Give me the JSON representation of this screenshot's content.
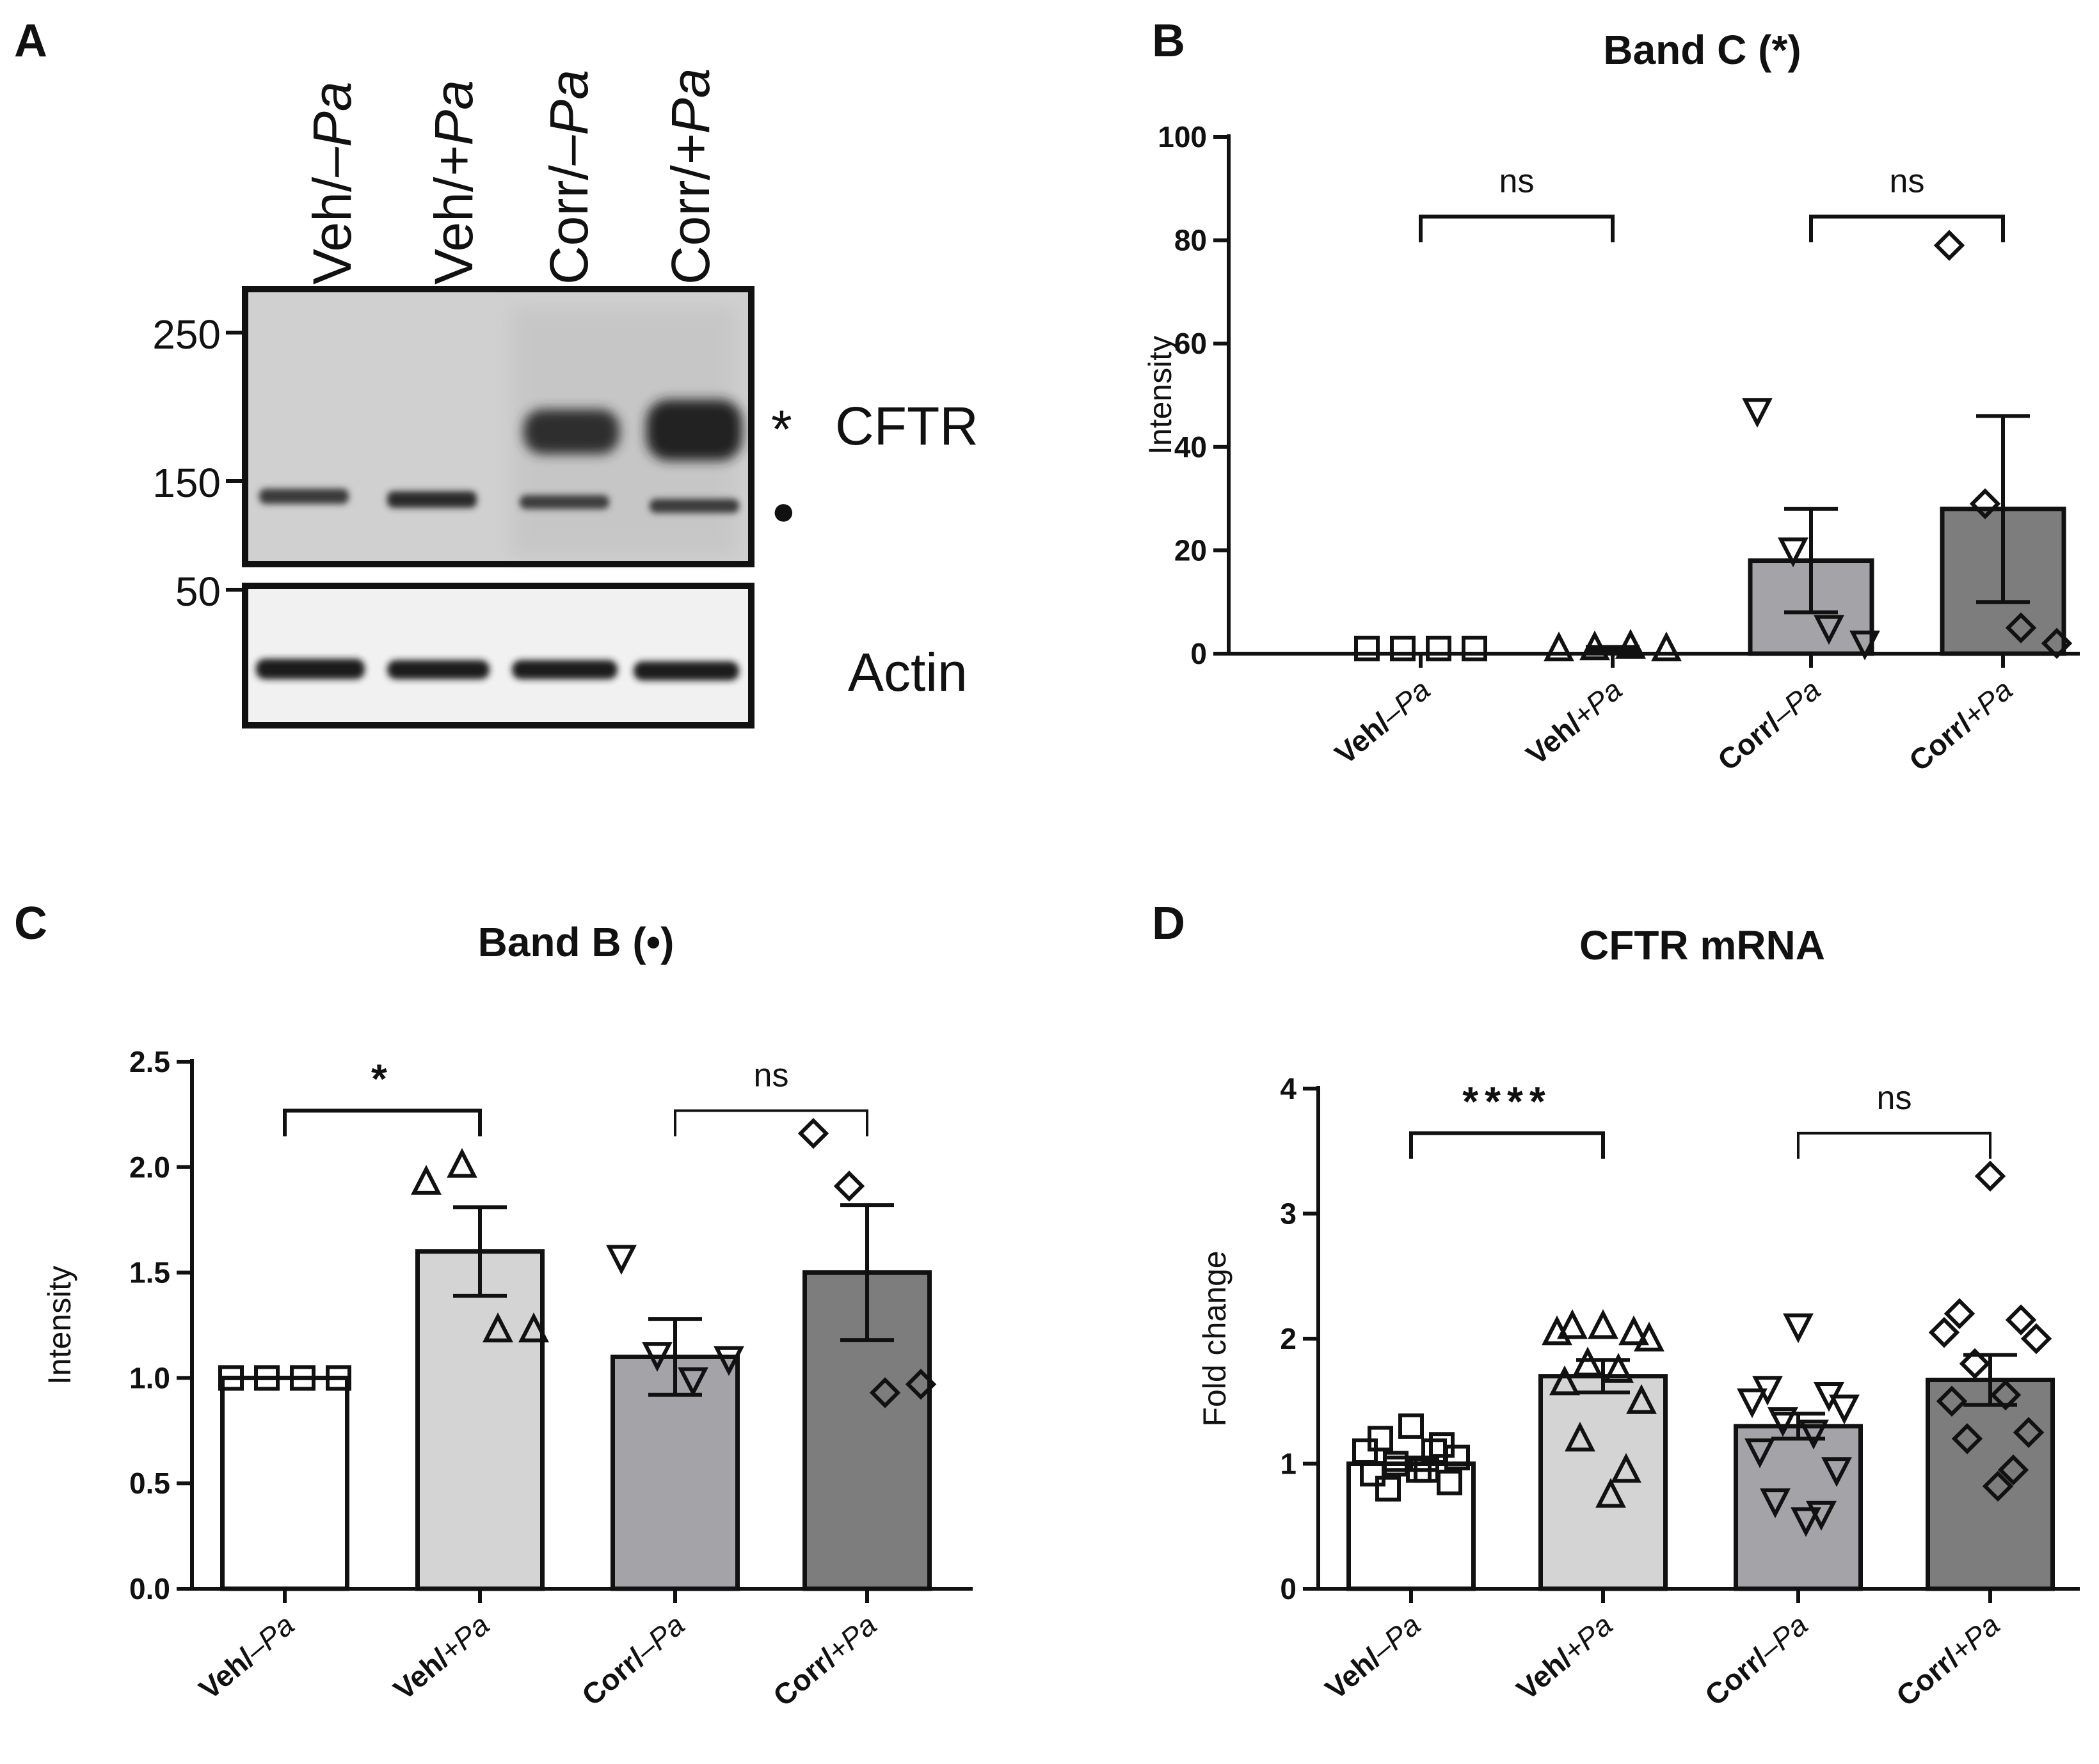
{
  "panels": {
    "A": {
      "letter": "A"
    },
    "B": {
      "letter": "B"
    },
    "C": {
      "letter": "C"
    },
    "D": {
      "letter": "D"
    }
  },
  "blot": {
    "lane_labels": [
      {
        "main": "Veh/",
        "italic": "–Pa"
      },
      {
        "main": "Veh/",
        "italic": "+Pa"
      },
      {
        "main": "Corr/",
        "italic": "–Pa"
      },
      {
        "main": "Corr/",
        "italic": "+Pa"
      }
    ],
    "mw_markers": [
      "250",
      "150",
      "50"
    ],
    "band_c_marker": "*",
    "band_b_marker": "●",
    "cftr_label": "CFTR",
    "actin_label": "Actin"
  },
  "colors": {
    "veh_minus": "#ffffff",
    "veh_plus": "#d4d4d4",
    "corr_minus": "#a3a3a8",
    "corr_plus": "#7d7d7d",
    "ink": "#111111"
  },
  "chart_data": [
    {
      "id": "B",
      "type": "bar",
      "title": "Band C (*)",
      "ylabel": "Intensity",
      "xlabel": "",
      "ylim": [
        0,
        100
      ],
      "yticks": [
        "0",
        "20",
        "40",
        "60",
        "80",
        "100"
      ],
      "ytick_values": [
        0,
        20,
        40,
        60,
        80,
        100
      ],
      "categories": [
        {
          "main": "Veh/",
          "italic": "–Pa"
        },
        {
          "main": "Veh/",
          "italic": "+Pa"
        },
        {
          "main": "Corr/",
          "italic": "–Pa"
        },
        {
          "main": "Corr/",
          "italic": "+Pa"
        }
      ],
      "values": [
        1,
        1,
        18,
        28
      ],
      "sem": [
        0,
        0.3,
        10,
        18
      ],
      "points": [
        [
          1,
          1,
          1,
          1
        ],
        [
          1,
          1.2,
          1.5,
          1
        ],
        [
          47,
          20,
          5,
          2
        ],
        [
          79,
          29,
          5,
          2
        ]
      ],
      "markers": [
        "square",
        "triangle-up",
        "triangle-down",
        "diamond"
      ],
      "show_bars": [
        false,
        false,
        true,
        true
      ],
      "comparisons": [
        {
          "from": 0,
          "to": 1,
          "label": "ns",
          "y": 92
        },
        {
          "from": 2,
          "to": 3,
          "label": "ns",
          "y": 92
        }
      ]
    },
    {
      "id": "C",
      "type": "bar",
      "title": "Band B (•)",
      "ylabel": "Intensity",
      "xlabel": "",
      "ylim": [
        0,
        2.5
      ],
      "yticks": [
        "0.0",
        "0.5",
        "1.0",
        "1.5",
        "2.0",
        "2.5"
      ],
      "ytick_values": [
        0,
        0.5,
        1.0,
        1.5,
        2.0,
        2.5
      ],
      "categories": [
        {
          "main": "Veh/",
          "italic": "–Pa"
        },
        {
          "main": "Veh/",
          "italic": "+Pa"
        },
        {
          "main": "Corr/",
          "italic": "–Pa"
        },
        {
          "main": "Corr/",
          "italic": "+Pa"
        }
      ],
      "values": [
        1.0,
        1.6,
        1.1,
        1.5
      ],
      "sem": [
        0,
        0.21,
        0.18,
        0.32
      ],
      "points": [
        [
          1,
          1,
          1,
          1
        ],
        [
          1.93,
          2.01,
          1.23,
          1.23
        ],
        [
          1.57,
          1.11,
          0.99,
          1.09
        ],
        [
          2.16,
          1.91,
          0.93,
          0.97
        ]
      ],
      "markers": [
        "square",
        "triangle-up",
        "triangle-down",
        "diamond"
      ],
      "show_bars": [
        true,
        true,
        true,
        true
      ],
      "comparisons": [
        {
          "from": 0,
          "to": 1,
          "label": "*",
          "y": 2.45
        },
        {
          "from": 2,
          "to": 3,
          "label": "ns",
          "y": 2.45
        }
      ]
    },
    {
      "id": "D",
      "type": "bar",
      "title": "CFTR mRNA",
      "ylabel": "Fold change",
      "xlabel": "",
      "ylim": [
        0,
        4
      ],
      "yticks": [
        "0",
        "1",
        "2",
        "3",
        "4"
      ],
      "ytick_values": [
        0,
        1,
        2,
        3,
        4
      ],
      "categories": [
        {
          "main": "Veh/",
          "italic": "–Pa"
        },
        {
          "main": "Veh/",
          "italic": "+Pa"
        },
        {
          "main": "Corr/",
          "italic": "–Pa"
        },
        {
          "main": "Corr/",
          "italic": "+Pa"
        }
      ],
      "values": [
        1.0,
        1.7,
        1.3,
        1.67
      ],
      "sem": [
        0.05,
        0.13,
        0.1,
        0.2
      ],
      "points": [
        [
          1.3,
          1.2,
          1.15,
          1.1,
          1.05,
          1.0,
          0.95,
          0.92,
          0.85,
          0.8,
          1.1,
          0.95
        ],
        [
          2.1,
          2.1,
          2.05,
          2.05,
          2.0,
          1.8,
          1.75,
          1.65,
          1.5,
          1.2,
          0.95,
          0.75
        ],
        [
          2.1,
          1.6,
          1.55,
          1.5,
          1.45,
          1.35,
          1.25,
          1.1,
          0.95,
          0.7,
          0.6,
          0.55
        ],
        [
          3.3,
          2.2,
          2.15,
          2.05,
          2.0,
          1.8,
          1.55,
          1.5,
          1.25,
          1.2,
          0.95,
          0.82
        ]
      ],
      "markers": [
        "square",
        "triangle-up",
        "triangle-down",
        "diamond"
      ],
      "show_bars": [
        true,
        true,
        true,
        true
      ],
      "comparisons": [
        {
          "from": 0,
          "to": 1,
          "label": "****",
          "y": 3.95
        },
        {
          "from": 2,
          "to": 3,
          "label": "ns",
          "y": 3.95
        }
      ]
    }
  ]
}
